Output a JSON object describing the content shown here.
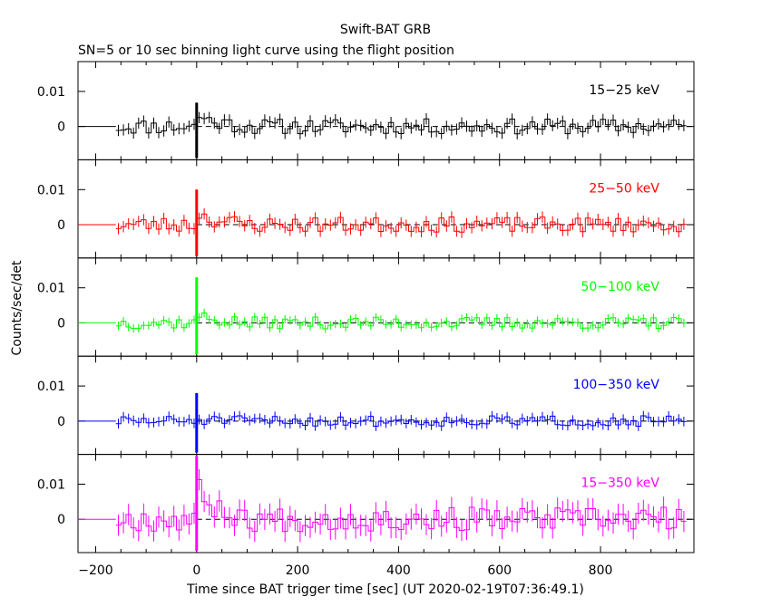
{
  "title": "Swift-BAT GRB",
  "subtitle": "SN=5 or 10 sec binning light curve using the flight position",
  "ylabel": "Counts/sec/det",
  "xlabel": "Time since BAT trigger time [sec] (UT 2020-02-19T07:36:49.1)",
  "chart_data": {
    "type": "line",
    "x_range": [
      -235,
      985
    ],
    "y_range": [
      -0.0095,
      0.0185
    ],
    "x_ticks": [
      -200,
      0,
      200,
      400,
      600,
      800
    ],
    "y_ticks": [
      0,
      0.01
    ],
    "y_tick_labels": [
      "0",
      "0.01"
    ],
    "x_tick_labels": [
      "−200",
      "0",
      "200",
      "400",
      "600",
      "800"
    ],
    "trigger_time": 0,
    "panels": [
      {
        "label": "15−25 keV",
        "color": "#000000"
      },
      {
        "label": "25−50 keV",
        "color": "#ff0000"
      },
      {
        "label": "50−100 keV",
        "color": "#00ff00"
      },
      {
        "label": "100−350 keV",
        "color": "#0000ff"
      },
      {
        "label": "15−350 keV",
        "color": "#ff00ff"
      }
    ]
  }
}
